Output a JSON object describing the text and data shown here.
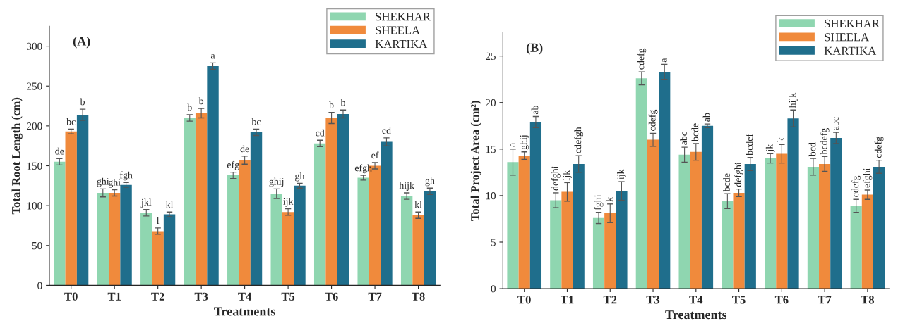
{
  "chart_data": [
    {
      "type": "bar",
      "title": "(A)",
      "xlabel": "Treatments",
      "ylabel": "Total Root Length (cm)",
      "categories": [
        "T0",
        "T1",
        "T2",
        "T3",
        "T4",
        "T5",
        "T6",
        "T7",
        "T8"
      ],
      "ylim": [
        0,
        325
      ],
      "yticks": [
        0,
        50,
        100,
        150,
        200,
        250,
        300
      ],
      "legend": "top right",
      "grid": false,
      "series": [
        {
          "name": "SHEKHAR",
          "color": "#8fd6b0",
          "values": [
            155,
            116,
            91,
            210,
            138,
            115,
            178,
            135,
            112
          ],
          "errors": [
            4,
            5,
            4,
            4,
            4,
            6,
            4,
            3,
            4
          ],
          "value_labels": [
            "de",
            "ghi",
            "jkl",
            "b",
            "efg",
            "ghij",
            "cd",
            "efgh",
            "hijk"
          ]
        },
        {
          "name": "SHEELA",
          "color": "#f08a3c",
          "values": [
            193,
            116,
            68,
            216,
            157,
            92,
            210,
            150,
            88
          ],
          "errors": [
            3,
            4,
            4,
            6,
            5,
            4,
            7,
            4,
            4
          ],
          "value_labels": [
            "bc",
            "ghi",
            "l",
            "b",
            "de",
            "ijk",
            "b",
            "ef",
            "kl"
          ]
        },
        {
          "name": "KARTIKA",
          "color": "#1f6e8c",
          "values": [
            214,
            126,
            89,
            275,
            192,
            125,
            215,
            180,
            118
          ],
          "errors": [
            7,
            3,
            3,
            4,
            4,
            3,
            5,
            5,
            4
          ],
          "value_labels": [
            "b",
            "fgh",
            "kl",
            "a",
            "bc",
            "gh",
            "b",
            "cd",
            "gh"
          ]
        }
      ]
    },
    {
      "type": "bar",
      "title": "(B)",
      "xlabel": "Treatments",
      "ylabel": "Total Project Area (cm²)",
      "categories": [
        "T0",
        "T1",
        "T2",
        "T3",
        "T4",
        "T5",
        "T6",
        "T7",
        "T8"
      ],
      "ylim": [
        0,
        27.5
      ],
      "yticks": [
        0,
        5,
        10,
        15,
        20,
        25
      ],
      "legend": "top right",
      "grid": false,
      "series": [
        {
          "name": "SHEKHAR",
          "color": "#8fd6b0",
          "values": [
            13.6,
            9.5,
            7.6,
            22.6,
            14.4,
            9.4,
            14.0,
            13.1,
            8.9
          ],
          "errors": [
            1.4,
            0.8,
            0.6,
            0.7,
            0.8,
            0.8,
            0.5,
            0.9,
            0.7
          ],
          "value_labels": [
            "a",
            "defghi",
            "fghi",
            "cdefg",
            "abc",
            "bcde",
            "jk",
            "bcd",
            "cdefg"
          ]
        },
        {
          "name": "SHEELA",
          "color": "#f08a3c",
          "values": [
            14.3,
            10.4,
            8.1,
            16.0,
            14.7,
            10.3,
            14.5,
            13.4,
            10.1
          ],
          "errors": [
            0.4,
            1.0,
            1.0,
            0.7,
            0.9,
            0.4,
            1.0,
            0.8,
            0.5
          ],
          "value_labels": [
            "ghij",
            "ijk",
            "k",
            "cdefg",
            "bcde",
            "defghi",
            "k",
            "bcdefg",
            "efghi"
          ]
        },
        {
          "name": "KARTIKA",
          "color": "#1f6e8c",
          "values": [
            17.9,
            13.4,
            10.5,
            23.3,
            17.5,
            13.4,
            18.3,
            16.2,
            13.1
          ],
          "errors": [
            0.6,
            0.9,
            1.0,
            0.8,
            0.2,
            0.7,
            0.9,
            0.6,
            0.7
          ],
          "value_labels": [
            "ab",
            "cdefgh",
            "ijk",
            "a",
            "ab",
            "bcdef",
            "hijk",
            "abc",
            "cdefg"
          ]
        }
      ]
    }
  ]
}
